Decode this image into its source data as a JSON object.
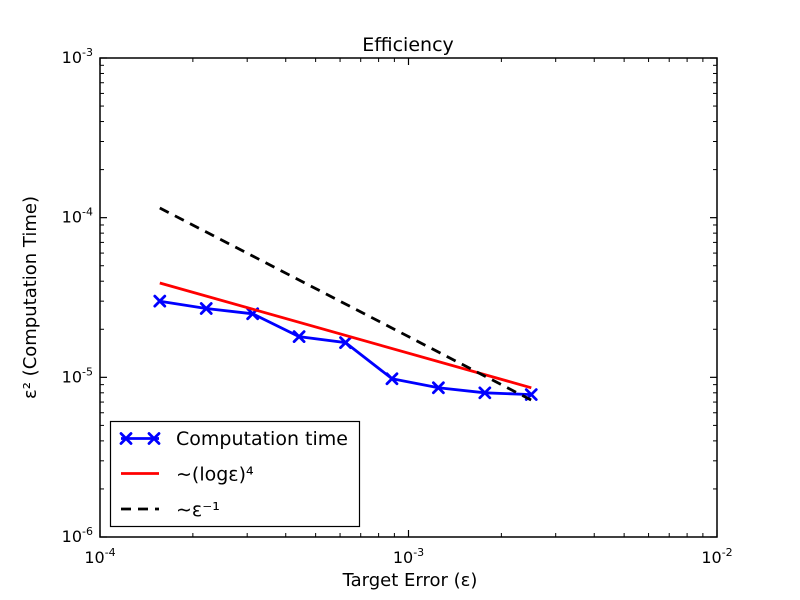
{
  "chart_data": {
    "type": "line",
    "title": "Efficiency",
    "xlabel": "Target Error (ε)",
    "ylabel": "ε² (Computation Time)",
    "xscale": "log",
    "yscale": "log",
    "xlim": [
      0.0001,
      0.01
    ],
    "ylim": [
      1e-06,
      0.001
    ],
    "grid": false,
    "background_color": "#ffffff",
    "frame_color": "#000000",
    "x_ticks": [
      {
        "value": 0.0001,
        "base": "10",
        "exp": "-4"
      },
      {
        "value": 0.001,
        "base": "10",
        "exp": "-3"
      },
      {
        "value": 0.01,
        "base": "10",
        "exp": "-2"
      }
    ],
    "y_ticks": [
      {
        "value": 0.001,
        "base": "10",
        "exp": "-3"
      },
      {
        "value": 0.0001,
        "base": "10",
        "exp": "-4"
      },
      {
        "value": 1e-05,
        "base": "10",
        "exp": "-5"
      },
      {
        "value": 1e-06,
        "base": "10",
        "exp": "-6"
      }
    ],
    "legend": {
      "position": "lower left"
    },
    "series": [
      {
        "name": "Computation time",
        "color": "#0000ff",
        "style": "solid",
        "marker": "x",
        "x": [
          0.00015625,
          0.00022097,
          0.0003125,
          0.00044194,
          0.000625,
          0.00088388,
          0.00125,
          0.0017678,
          0.0025
        ],
        "y": [
          3e-05,
          2.7e-05,
          2.5e-05,
          1.8e-05,
          1.65e-05,
          9.8e-06,
          8.6e-06,
          8e-06,
          7.8e-06
        ]
      },
      {
        "name": "∼(logε)⁴",
        "color": "#ff0000",
        "style": "solid",
        "marker": null,
        "x": [
          0.00015625,
          0.0025
        ],
        "y": [
          3.9e-05,
          8.6e-06
        ]
      },
      {
        "name": "∼ε⁻¹",
        "color": "#000000",
        "style": "dashed",
        "marker": null,
        "x": [
          0.00015625,
          0.0025
        ],
        "y": [
          0.000115,
          7.2e-06
        ]
      }
    ]
  }
}
